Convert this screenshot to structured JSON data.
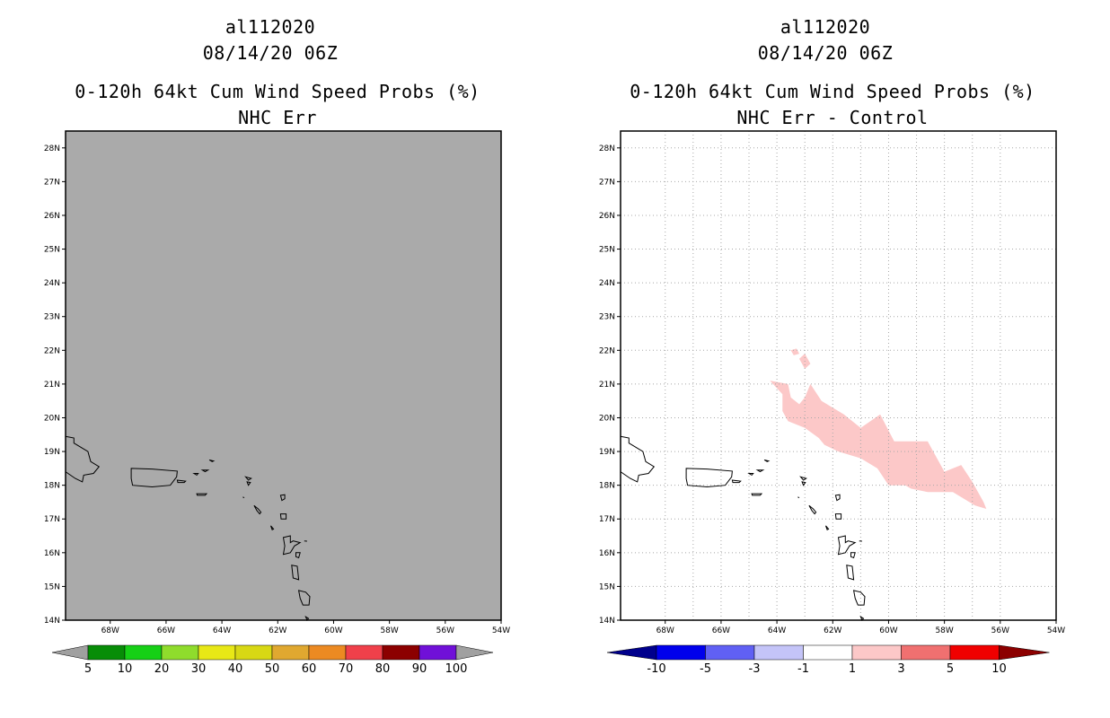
{
  "left_panel": {
    "storm_id": "al112020",
    "datetime": "08/14/20 06Z",
    "product": "0-120h 64kt Cum Wind Speed Probs (%)",
    "subtitle": "NHC Err",
    "field_color": "#aaaaaa",
    "colorbar": {
      "labels": [
        "5",
        "10",
        "20",
        "30",
        "40",
        "50",
        "60",
        "70",
        "80",
        "90",
        "100"
      ],
      "colors": [
        "#078d07",
        "#16d016",
        "#8fdc2c",
        "#e8e816",
        "#d8d814",
        "#e0a830",
        "#ec8a22",
        "#f0404a",
        "#8c0000",
        "#7010d8"
      ],
      "end_color": "#a0a0a0"
    }
  },
  "right_panel": {
    "storm_id": "al112020",
    "datetime": "08/14/20 06Z",
    "product": "0-120h 64kt Cum Wind Speed Probs (%)",
    "subtitle": "NHC Err - Control",
    "field_color": "#ffffff",
    "shade_color": "#fcc8c8",
    "colorbar": {
      "labels": [
        "-10",
        "-5",
        "-3",
        "-1",
        "1",
        "3",
        "5",
        "10"
      ],
      "colors": [
        "#0000ec",
        "#6060f4",
        "#c4c4f8",
        "#ffffff",
        "#fcc8c8",
        "#f07070",
        "#f00000"
      ],
      "left_end": "#00008c",
      "right_end": "#8c0000"
    }
  },
  "map": {
    "lat_labels": [
      "28N",
      "27N",
      "26N",
      "25N",
      "24N",
      "23N",
      "22N",
      "21N",
      "20N",
      "19N",
      "18N",
      "17N",
      "16N",
      "15N",
      "14N"
    ],
    "lon_labels": [
      "68W",
      "66W",
      "64W",
      "62W",
      "60W",
      "58W",
      "56W",
      "54W"
    ]
  }
}
